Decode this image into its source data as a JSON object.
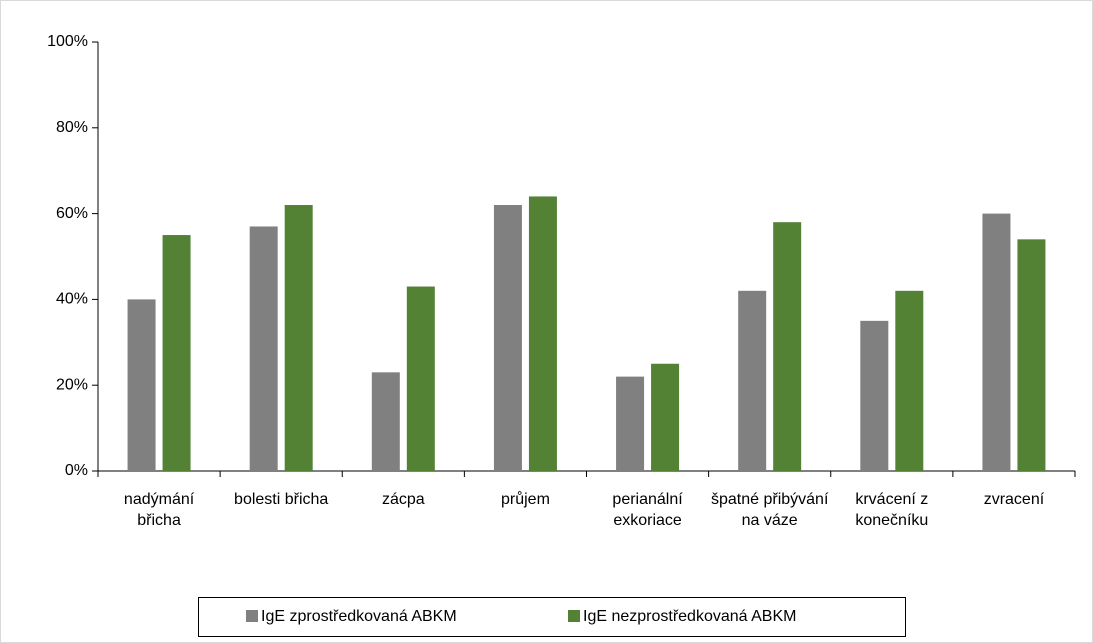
{
  "chart_data": {
    "type": "bar",
    "categories": [
      "nadýmání břicha",
      "bolesti břicha",
      "zácpa",
      "průjem",
      "perianální exkoriace",
      "špatné přibývání na váze",
      "krvácení z konečníku",
      "zvracení"
    ],
    "series": [
      {
        "name": "IgE zprostředkovaná ABKM",
        "color": "#808080",
        "values": [
          40,
          57,
          23,
          62,
          22,
          42,
          35,
          60
        ]
      },
      {
        "name": "IgE nezprostředkovaná ABKM",
        "color": "#548235",
        "values": [
          55,
          62,
          43,
          64,
          25,
          58,
          42,
          54
        ]
      }
    ],
    "ylim": [
      0,
      100
    ],
    "yticks": [
      {
        "value": 0,
        "label": "0%"
      },
      {
        "value": 20,
        "label": "20%"
      },
      {
        "value": 40,
        "label": "40%"
      },
      {
        "value": 60,
        "label": "60%"
      },
      {
        "value": 80,
        "label": "80%"
      },
      {
        "value": 100,
        "label": "100%"
      }
    ],
    "legend": "bottom"
  }
}
